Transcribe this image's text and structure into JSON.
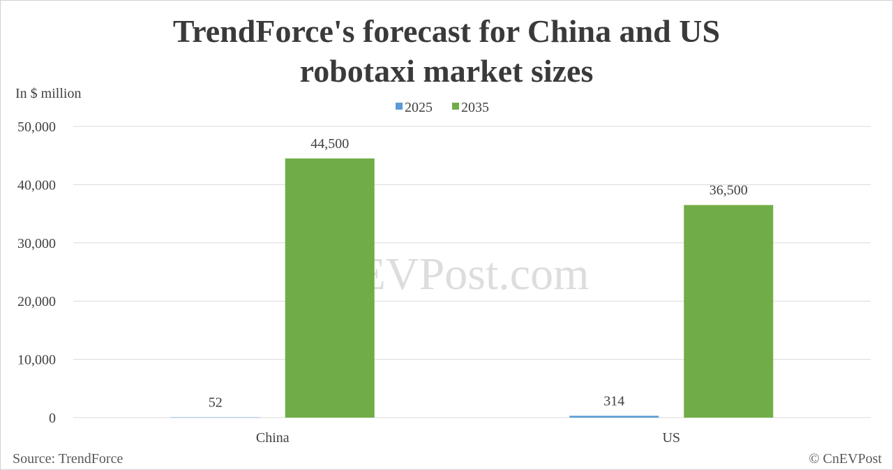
{
  "chart_data": {
    "type": "bar",
    "title_lines": [
      "TrendForce's forecast for China and US",
      "robotaxi market sizes"
    ],
    "ylabel": "In $ million",
    "categories": [
      "China",
      "US"
    ],
    "series": [
      {
        "name": "2025",
        "values": [
          52,
          314
        ],
        "labels": [
          "52",
          "314"
        ],
        "color": "#5b9bd5"
      },
      {
        "name": "2035",
        "values": [
          44500,
          36500
        ],
        "labels": [
          "44,500",
          "36,500"
        ],
        "color": "#70ad47"
      }
    ],
    "ylim": [
      0,
      50000
    ],
    "yticks": [
      0,
      10000,
      20000,
      30000,
      40000,
      50000
    ],
    "ytick_labels": [
      "0",
      "10,000",
      "20,000",
      "30,000",
      "40,000",
      "50,000"
    ],
    "grid": true,
    "legend_position": "top-center"
  },
  "source": "Source: TrendForce",
  "copyright": "© CnEVPost",
  "watermark": "CnEVPost.com"
}
